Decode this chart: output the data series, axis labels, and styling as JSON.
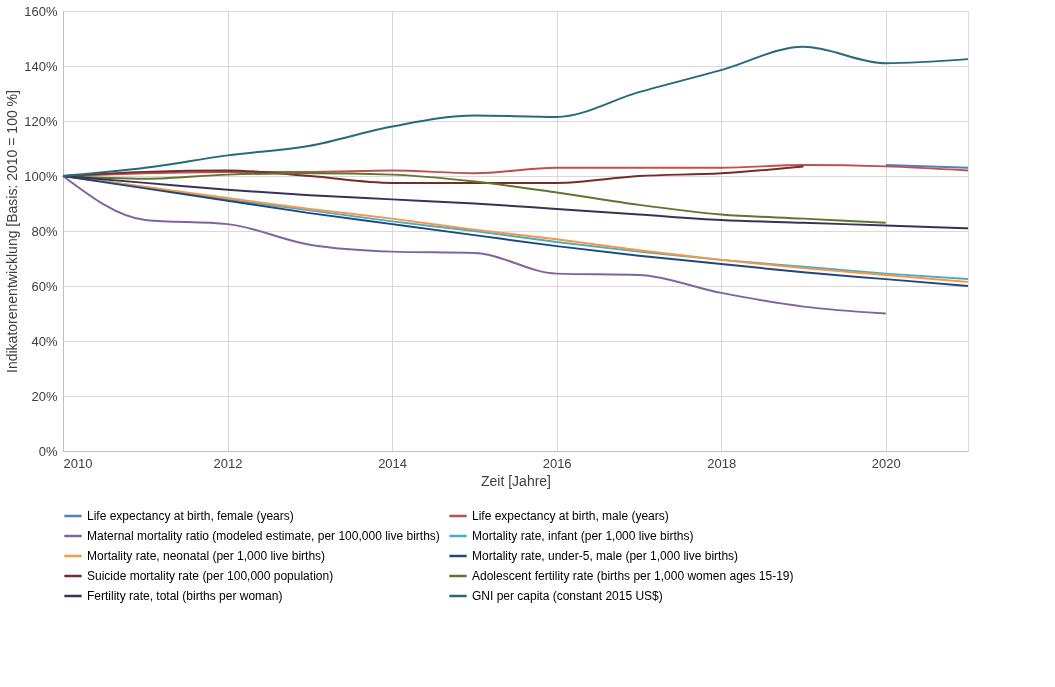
{
  "chart_data": {
    "type": "line",
    "xlabel": "Zeit [Jahre]",
    "ylabel": "Indikatorenentwicklung [Basis: 2010 = 100 %]",
    "x": [
      2010,
      2011,
      2012,
      2013,
      2014,
      2015,
      2016,
      2017,
      2018,
      2019,
      2020,
      2021
    ],
    "series": [
      {
        "name": "Life expectancy at birth, female (years)",
        "color": "#4f81bd",
        "values": [
          null,
          null,
          null,
          null,
          null,
          null,
          null,
          null,
          null,
          null,
          104,
          103
        ]
      },
      {
        "name": "Life expectancy at birth, male (years)",
        "color": "#c0504d",
        "values": [
          100,
          101,
          101.5,
          101.5,
          102,
          101,
          103,
          103,
          103,
          104,
          103.5,
          102
        ]
      },
      {
        "name": "Maternal mortality ratio (modeled estimate, per 100,000 live births)",
        "color": "#8064a2",
        "values": [
          100,
          84,
          82.5,
          75,
          72.5,
          72,
          64.5,
          64,
          57.5,
          52.5,
          50,
          null
        ]
      },
      {
        "name": "Mortality rate, infant (per 1,000 live births)",
        "color": "#4bacc6",
        "values": [
          100,
          96,
          91.5,
          87.5,
          83.5,
          80,
          76,
          72.5,
          69.5,
          67,
          64.5,
          62.5
        ]
      },
      {
        "name": "Mortality rate, neonatal (per 1,000 live births)",
        "color": "#f79646",
        "values": [
          100,
          96,
          92,
          88,
          84.5,
          80.5,
          77,
          73,
          69.5,
          66.5,
          64,
          61.5
        ]
      },
      {
        "name": "Mortality rate, under-5, male (per 1,000 live births)",
        "color": "#1f497d",
        "values": [
          100,
          95.5,
          91,
          86.5,
          82.5,
          78.5,
          74.5,
          71,
          68,
          65,
          62.5,
          60
        ]
      },
      {
        "name": "Suicide mortality rate (per 100,000 population)",
        "color": "#772c2a",
        "values": [
          100,
          101.5,
          102,
          100,
          97.5,
          97.5,
          97.5,
          100,
          101,
          103.5,
          null,
          null
        ]
      },
      {
        "name": "Adolescent fertility rate (births per 1,000 women ages 15-19)",
        "color": "#5f7530",
        "values": [
          100,
          99,
          100.5,
          101,
          100.5,
          98,
          94,
          89.5,
          86,
          84.5,
          83,
          null
        ]
      },
      {
        "name": "Fertility rate, total (births per woman)",
        "color": "#3b3154",
        "values": [
          100,
          97.5,
          95,
          93,
          91.5,
          90,
          88,
          86,
          84,
          83,
          82,
          81
        ]
      },
      {
        "name": "GNI per capita (constant 2015 US$)",
        "color": "#276a7c",
        "values": [
          100,
          103,
          107.5,
          111,
          118,
          122,
          121.5,
          130.5,
          138.5,
          147,
          141,
          142.5
        ]
      }
    ],
    "xlim": [
      2010,
      2021
    ],
    "xticks": [
      2010,
      2012,
      2014,
      2016,
      2018,
      2020
    ],
    "ylim": [
      0,
      160
    ],
    "yticks": [
      {
        "value": 0,
        "label": "0%"
      },
      {
        "value": 20,
        "label": "20%"
      },
      {
        "value": 40,
        "label": "40%"
      },
      {
        "value": 60,
        "label": "60%"
      },
      {
        "value": 80,
        "label": "80%"
      },
      {
        "value": 100,
        "label": "100%"
      },
      {
        "value": 120,
        "label": "120%"
      },
      {
        "value": 140,
        "label": "140%"
      },
      {
        "value": 160,
        "label": "160%"
      }
    ],
    "grid": true,
    "legend": "bottom"
  }
}
